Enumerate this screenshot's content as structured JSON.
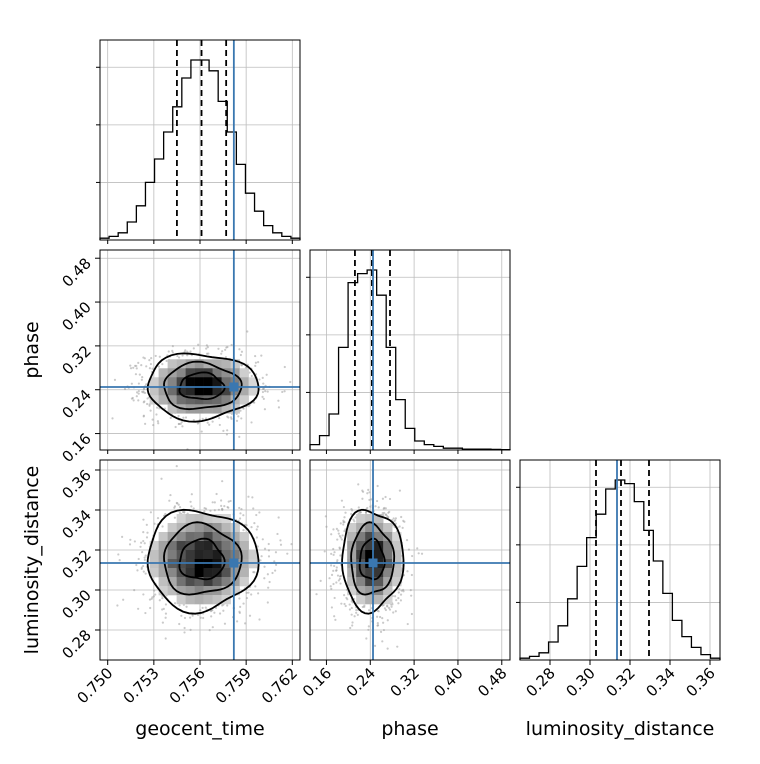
{
  "chart_data": {
    "type": "corner",
    "parameters": [
      "geocent_time",
      "phase",
      "luminosity_distance"
    ],
    "truth_color": "#3a77b0",
    "grid": true,
    "panels": {
      "geocent_time": {
        "range": [
          0.7495,
          0.7625
        ],
        "ticks": [
          0.75,
          0.753,
          0.756,
          0.759,
          0.762
        ],
        "tick_labels": [
          "0.750",
          "0.753",
          "0.756",
          "0.759",
          "0.762"
        ],
        "truth": 0.7582,
        "quantiles": [
          0.7545,
          0.7561,
          0.7577
        ],
        "hist_counts": [
          0.01,
          0.02,
          0.04,
          0.1,
          0.19,
          0.32,
          0.45,
          0.6,
          0.74,
          0.9,
          1.0,
          1.0,
          0.94,
          0.77,
          0.6,
          0.42,
          0.26,
          0.16,
          0.08,
          0.04,
          0.02,
          0.01
        ]
      },
      "phase": {
        "range": [
          0.13,
          0.495
        ],
        "ticks": [
          0.16,
          0.24,
          0.32,
          0.4,
          0.48
        ],
        "tick_labels": [
          "0.16",
          "0.24",
          "0.32",
          "0.40",
          "0.48"
        ],
        "truth": 0.245,
        "quantiles": [
          0.212,
          0.243,
          0.276
        ],
        "hist_counts": [
          0.03,
          0.08,
          0.2,
          0.57,
          0.93,
          0.98,
          1.0,
          0.86,
          0.57,
          0.28,
          0.12,
          0.05,
          0.03,
          0.02,
          0.01,
          0.01,
          0.005,
          0.005,
          0.005,
          0.003,
          0.002
        ]
      },
      "luminosity_distance": {
        "range": [
          0.265,
          0.365
        ],
        "ticks": [
          0.28,
          0.3,
          0.32,
          0.34,
          0.36
        ],
        "tick_labels": [
          "0.28",
          "0.30",
          "0.32",
          "0.34",
          "0.36"
        ],
        "truth": 0.3135,
        "quantiles": [
          0.303,
          0.3155,
          0.3295
        ],
        "hist_counts": [
          0.01,
          0.02,
          0.04,
          0.1,
          0.19,
          0.34,
          0.52,
          0.68,
          0.81,
          0.95,
          1.0,
          0.98,
          0.88,
          0.72,
          0.55,
          0.37,
          0.22,
          0.13,
          0.07,
          0.03,
          0.01
        ]
      }
    },
    "pairs": [
      {
        "x": "geocent_time",
        "y": "phase",
        "center": [
          0.7561,
          0.246
        ],
        "sd": [
          0.0018,
          0.03
        ],
        "rho": -0.05,
        "truth": [
          0.7582,
          0.245
        ]
      },
      {
        "x": "geocent_time",
        "y": "luminosity_distance",
        "center": [
          0.7561,
          0.315
        ],
        "sd": [
          0.0018,
          0.0125
        ],
        "rho": 0.0,
        "truth": [
          0.7582,
          0.3135
        ]
      },
      {
        "x": "phase",
        "y": "luminosity_distance",
        "center": [
          0.243,
          0.315
        ],
        "sd": [
          0.028,
          0.0125
        ],
        "rho": -0.03,
        "truth": [
          0.245,
          0.3135
        ]
      }
    ],
    "contour_levels": [
      0.8,
      1.4,
      2.0
    ],
    "axis_labels": {
      "geocent_time": "geocent_time",
      "phase": "phase",
      "luminosity_distance": "luminosity_distance"
    }
  }
}
